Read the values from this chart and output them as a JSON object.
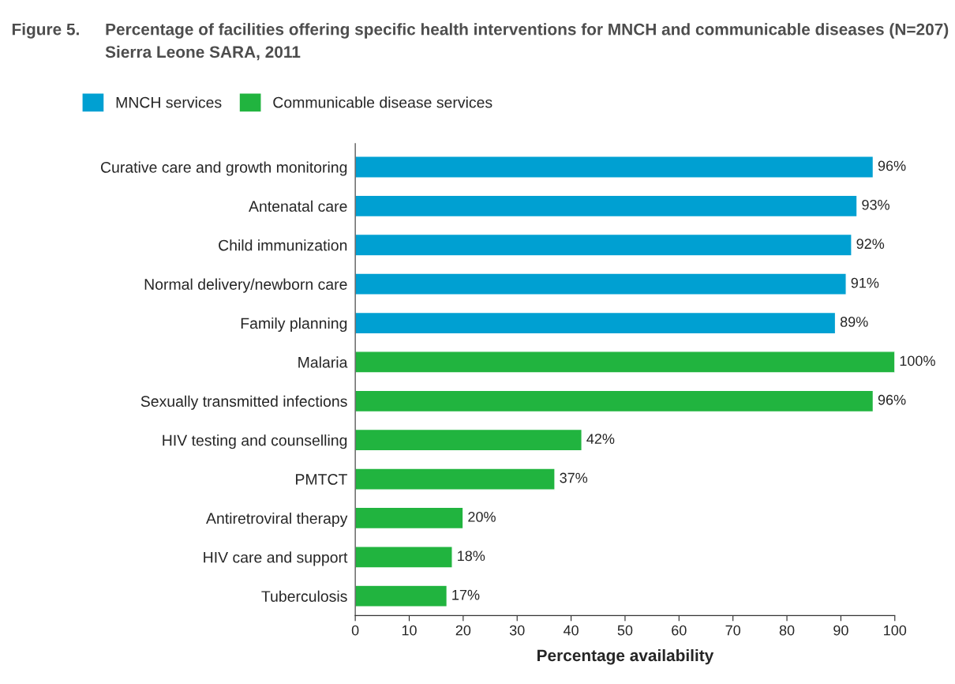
{
  "chart_data": {
    "type": "bar",
    "orientation": "horizontal",
    "title": "Percentage of facilities offering specific health interventions for MNCH and communicable diseases (N=207)",
    "subtitle": "Sierra Leone SARA, 2011",
    "annotations": [
      "Figure 5."
    ],
    "xlabel": "Percentage availability",
    "categories": [
      "Curative care and growth monitoring",
      "Antenatal care",
      "Child immunization",
      "Normal delivery/newborn care",
      "Family planning",
      "Malaria",
      "Sexually transmitted infections",
      "HIV testing and counselling",
      "PMTCT",
      "Antiretroviral therapy",
      "HIV care and support",
      "Tuberculosis"
    ],
    "series": [
      {
        "name": "MNCH services",
        "color": "#00a0d2",
        "values": [
          96,
          93,
          92,
          91,
          89,
          null,
          null,
          null,
          null,
          null,
          null,
          null
        ],
        "value_labels": [
          "96%",
          "93%",
          "92%",
          "91%",
          "89%",
          null,
          null,
          null,
          null,
          null,
          null,
          null
        ]
      },
      {
        "name": "Communicable disease services",
        "color": "#21b43f",
        "values": [
          null,
          null,
          null,
          null,
          null,
          100,
          96,
          42,
          37,
          20,
          18,
          17
        ],
        "value_labels": [
          null,
          null,
          null,
          null,
          null,
          "100%",
          "96%",
          "42%",
          "37%",
          "20%",
          "18%",
          "17%"
        ]
      }
    ],
    "xlim": [
      0,
      100
    ],
    "xticks": [
      0,
      10,
      20,
      30,
      40,
      50,
      60,
      70,
      80,
      90,
      100
    ],
    "grid": false,
    "legend": "top left"
  }
}
